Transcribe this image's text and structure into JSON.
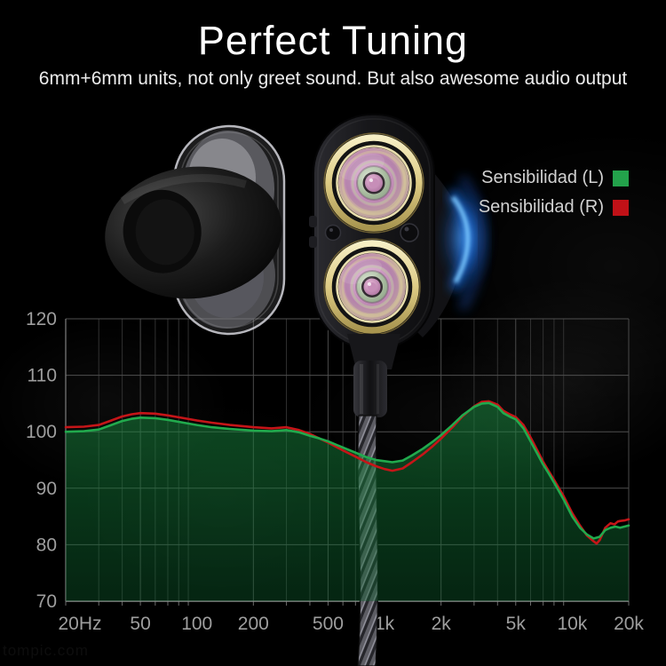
{
  "header": {
    "title": "Perfect Tuning",
    "subtitle": "6mm+6mm units, not only greet sound. But also awesome audio output"
  },
  "legend": {
    "items": [
      {
        "label": "Sensibilidad  (L)",
        "color": "#23a24b"
      },
      {
        "label": "Sensibilidad  (R)",
        "color": "#c01117"
      }
    ]
  },
  "watermark": "tompic.com",
  "chart_data": {
    "type": "area",
    "title": "",
    "xlabel": "",
    "ylabel": "",
    "x_scale": "log",
    "x_range": [
      20,
      20000
    ],
    "y_range": [
      70,
      120
    ],
    "grid": true,
    "legend_position": "top-right",
    "y_ticks": [
      120,
      110,
      100,
      90,
      80,
      70
    ],
    "x_tick_values": [
      20,
      50,
      100,
      200,
      500,
      1000,
      2000,
      5000,
      10000,
      20000
    ],
    "x_tick_labels": [
      "20Hz",
      "50",
      "100",
      "200",
      "500",
      "1k",
      "2k",
      "5k",
      "10k",
      "20k"
    ],
    "series": [
      {
        "name": "Sensibilidad (L)",
        "color": "#21aa4d",
        "fill": true,
        "points": [
          [
            20,
            100.0
          ],
          [
            25,
            100.1
          ],
          [
            30,
            100.4
          ],
          [
            35,
            101.2
          ],
          [
            40,
            101.9
          ],
          [
            45,
            102.3
          ],
          [
            50,
            102.5
          ],
          [
            60,
            102.4
          ],
          [
            70,
            102.1
          ],
          [
            85,
            101.6
          ],
          [
            100,
            101.2
          ],
          [
            120,
            100.8
          ],
          [
            150,
            100.5
          ],
          [
            200,
            100.2
          ],
          [
            250,
            100.1
          ],
          [
            300,
            100.3
          ],
          [
            350,
            99.9
          ],
          [
            400,
            99.3
          ],
          [
            450,
            98.8
          ],
          [
            500,
            98.3
          ],
          [
            600,
            97.2
          ],
          [
            700,
            96.3
          ],
          [
            800,
            95.5
          ],
          [
            900,
            95.0
          ],
          [
            1000,
            94.8
          ],
          [
            1100,
            94.6
          ],
          [
            1250,
            94.9
          ],
          [
            1400,
            95.8
          ],
          [
            1600,
            97.0
          ],
          [
            1800,
            98.2
          ],
          [
            2000,
            99.4
          ],
          [
            2300,
            101.2
          ],
          [
            2600,
            102.9
          ],
          [
            3000,
            104.4
          ],
          [
            3300,
            105.0
          ],
          [
            3600,
            105.1
          ],
          [
            4000,
            104.4
          ],
          [
            4300,
            103.3
          ],
          [
            4700,
            102.6
          ],
          [
            5000,
            102.2
          ],
          [
            5500,
            100.6
          ],
          [
            6000,
            98.3
          ],
          [
            6500,
            96.2
          ],
          [
            7000,
            94.2
          ],
          [
            7500,
            92.6
          ],
          [
            8000,
            91.0
          ],
          [
            9000,
            88.0
          ],
          [
            10000,
            85.0
          ],
          [
            11000,
            83.0
          ],
          [
            12000,
            81.8
          ],
          [
            13000,
            81.1
          ],
          [
            14000,
            81.4
          ],
          [
            15000,
            82.6
          ],
          [
            16000,
            83.0
          ],
          [
            17000,
            83.2
          ],
          [
            18000,
            83.0
          ],
          [
            19000,
            83.2
          ],
          [
            20000,
            83.4
          ]
        ]
      },
      {
        "name": "Sensibilidad (R)",
        "color": "#c51518",
        "fill": false,
        "points": [
          [
            20,
            100.8
          ],
          [
            25,
            100.9
          ],
          [
            30,
            101.2
          ],
          [
            35,
            102.0
          ],
          [
            40,
            102.7
          ],
          [
            45,
            103.1
          ],
          [
            50,
            103.3
          ],
          [
            60,
            103.2
          ],
          [
            70,
            102.9
          ],
          [
            85,
            102.4
          ],
          [
            100,
            102.0
          ],
          [
            120,
            101.6
          ],
          [
            150,
            101.2
          ],
          [
            200,
            100.8
          ],
          [
            250,
            100.6
          ],
          [
            300,
            100.8
          ],
          [
            350,
            100.3
          ],
          [
            400,
            99.6
          ],
          [
            450,
            98.8
          ],
          [
            500,
            98.1
          ],
          [
            600,
            96.7
          ],
          [
            700,
            95.6
          ],
          [
            800,
            94.6
          ],
          [
            900,
            93.9
          ],
          [
            1000,
            93.4
          ],
          [
            1100,
            93.1
          ],
          [
            1250,
            93.5
          ],
          [
            1400,
            94.6
          ],
          [
            1600,
            96.0
          ],
          [
            1800,
            97.4
          ],
          [
            2000,
            98.8
          ],
          [
            2300,
            100.8
          ],
          [
            2600,
            102.7
          ],
          [
            3000,
            104.5
          ],
          [
            3300,
            105.3
          ],
          [
            3600,
            105.4
          ],
          [
            4000,
            104.8
          ],
          [
            4300,
            103.7
          ],
          [
            4700,
            103.0
          ],
          [
            5000,
            102.6
          ],
          [
            5500,
            101.2
          ],
          [
            6000,
            99.0
          ],
          [
            6500,
            96.8
          ],
          [
            7000,
            94.7
          ],
          [
            7500,
            93.0
          ],
          [
            8000,
            91.5
          ],
          [
            9000,
            88.6
          ],
          [
            10000,
            85.6
          ],
          [
            11000,
            83.4
          ],
          [
            12000,
            81.6
          ],
          [
            13000,
            80.6
          ],
          [
            13500,
            80.2
          ],
          [
            14000,
            80.8
          ],
          [
            15000,
            83.0
          ],
          [
            16000,
            83.8
          ],
          [
            16800,
            83.6
          ],
          [
            17500,
            84.1
          ],
          [
            18000,
            84.2
          ],
          [
            19000,
            84.3
          ],
          [
            20000,
            84.5
          ]
        ]
      }
    ]
  }
}
